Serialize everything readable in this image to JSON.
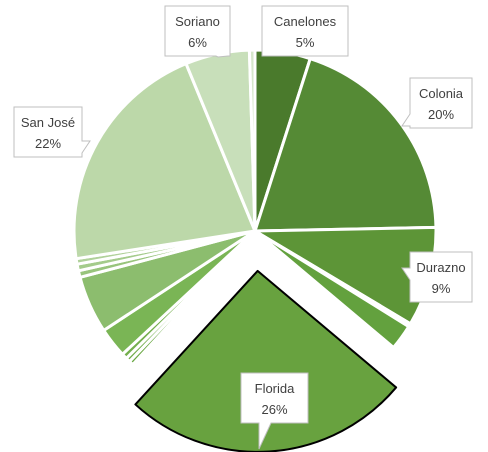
{
  "chart_data": {
    "type": "pie",
    "title": "",
    "legend": "none",
    "slices": [
      {
        "label": "Canelones",
        "value": 5,
        "pct_label": "5%",
        "color": "#4a7a2c"
      },
      {
        "label": "Colonia",
        "value": 20,
        "pct_label": "20%",
        "color": "#558a35"
      },
      {
        "label": "Durazno",
        "value": 9,
        "pct_label": "9%",
        "color": "#5d9537"
      },
      {
        "label": "",
        "value": 0.3,
        "pct_label": "",
        "color": "#ffffff"
      },
      {
        "label": "",
        "value": 2.3,
        "pct_label": "",
        "color": "#63a13e"
      },
      {
        "label": "Florida",
        "value": 26,
        "pct_label": "26%",
        "color": "#68a23f",
        "exploded": true
      },
      {
        "label": "",
        "value": 0.4,
        "pct_label": "",
        "color": "#6aa843"
      },
      {
        "label": "",
        "value": 0.4,
        "pct_label": "",
        "color": "#6eab47"
      },
      {
        "label": "",
        "value": 0.5,
        "pct_label": "",
        "color": "#74af4e"
      },
      {
        "label": "",
        "value": 2.7,
        "pct_label": "",
        "color": "#7ab555"
      },
      {
        "label": "",
        "value": 5.2,
        "pct_label": "",
        "color": "#8cbd6e"
      },
      {
        "label": "",
        "value": 0.6,
        "pct_label": "",
        "color": "#98c47c"
      },
      {
        "label": "",
        "value": 0.6,
        "pct_label": "",
        "color": "#a4cb8b"
      },
      {
        "label": "",
        "value": 0.5,
        "pct_label": "",
        "color": "#b0d19a"
      },
      {
        "label": "San José",
        "value": 21.5,
        "pct_label": "22%",
        "color": "#bcd8a9"
      },
      {
        "label": "Soriano",
        "value": 5.8,
        "pct_label": "6%",
        "color": "#c8dfba"
      },
      {
        "label": "",
        "value": 0.5,
        "pct_label": "",
        "color": "#d6e7cb"
      }
    ],
    "colors": {
      "border": "#ffffff",
      "exploded_border": "#000000",
      "callout_border": "#bfbfbf",
      "label_text": "#404040"
    }
  }
}
